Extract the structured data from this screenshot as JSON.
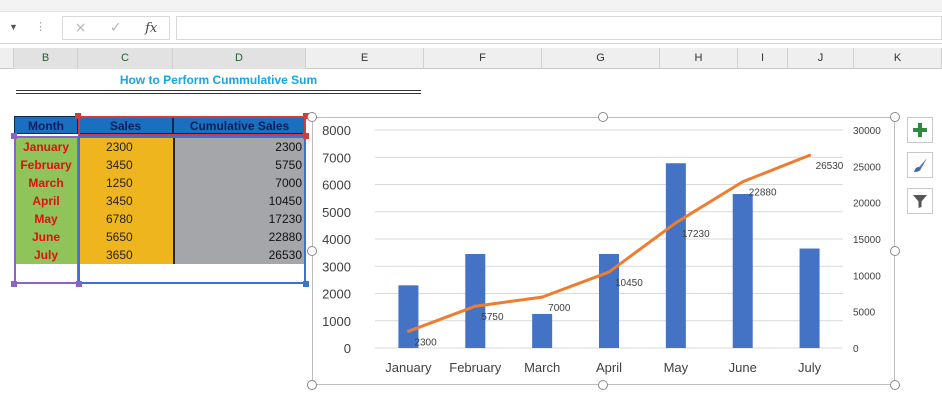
{
  "formula_bar": {
    "cancel_icon": "×",
    "enter_icon": "✓",
    "fx_label": "fx",
    "formula": ""
  },
  "columns": [
    {
      "label": "B",
      "selected": true
    },
    {
      "label": "C",
      "selected": true
    },
    {
      "label": "D",
      "selected": true
    },
    {
      "label": "E",
      "selected": false
    },
    {
      "label": "F",
      "selected": false
    },
    {
      "label": "G",
      "selected": false
    },
    {
      "label": "H",
      "selected": false
    },
    {
      "label": "I",
      "selected": false
    },
    {
      "label": "J",
      "selected": false
    },
    {
      "label": "K",
      "selected": false
    }
  ],
  "sheet": {
    "title": "How to Perform Cummulative Sum",
    "headers": [
      "Month",
      "Sales",
      "Cumulative Sales"
    ],
    "rows": [
      {
        "month": "January",
        "sales": "2300",
        "cumulative": "2300"
      },
      {
        "month": "February",
        "sales": "3450",
        "cumulative": "5750"
      },
      {
        "month": "March",
        "sales": "1250",
        "cumulative": "7000"
      },
      {
        "month": "April",
        "sales": "3450",
        "cumulative": "10450"
      },
      {
        "month": "May",
        "sales": "6780",
        "cumulative": "17230"
      },
      {
        "month": "June",
        "sales": "5650",
        "cumulative": "22880"
      },
      {
        "month": "July",
        "sales": "3650",
        "cumulative": "26530"
      }
    ]
  },
  "chart_data": {
    "type": "bar",
    "title": "",
    "categories": [
      "January",
      "February",
      "March",
      "April",
      "May",
      "June",
      "July"
    ],
    "series": [
      {
        "type": "bar",
        "axis": "primary",
        "color": "#4472c4",
        "values": [
          2300,
          3450,
          1250,
          3450,
          6780,
          5650,
          3650
        ]
      },
      {
        "type": "line",
        "axis": "secondary",
        "color": "#ed7d31",
        "values": [
          2300,
          5750,
          7000,
          10450,
          17230,
          22880,
          26530
        ],
        "data_labels": [
          "2300",
          "5750",
          "7000",
          "10450",
          "17230",
          "22880",
          "26530"
        ]
      }
    ],
    "ylim": [
      0,
      8000
    ],
    "y_ticks": [
      "0",
      "1000",
      "2000",
      "3000",
      "4000",
      "5000",
      "6000",
      "7000",
      "8000"
    ],
    "y2lim": [
      0,
      30000
    ],
    "y2_ticks": [
      "0",
      "5000",
      "10000",
      "15000",
      "20000",
      "25000",
      "30000"
    ],
    "grid": true,
    "legend": "none"
  },
  "chart_tools": [
    {
      "name": "chart-elements-button",
      "icon": "plus-icon"
    },
    {
      "name": "chart-styles-button",
      "icon": "brush-icon"
    },
    {
      "name": "chart-filters-button",
      "icon": "filter-icon"
    }
  ]
}
